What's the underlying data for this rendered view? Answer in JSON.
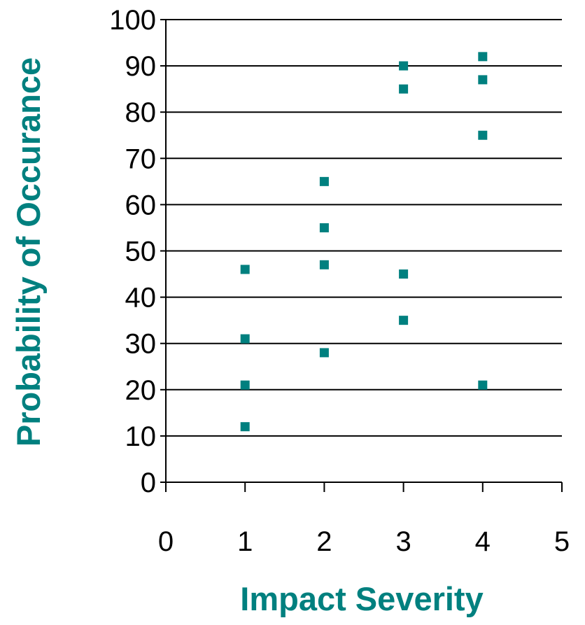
{
  "colors": {
    "accent": "#00807f",
    "grid": "#000000",
    "axis": "#000000",
    "text": "#000000",
    "background": "#ffffff"
  },
  "chart_data": {
    "type": "scatter",
    "title": "",
    "xlabel": "Impact Severity",
    "ylabel": "Probability of Occurance",
    "xlim": [
      0,
      5
    ],
    "ylim": [
      0,
      100
    ],
    "x_ticks": [
      0,
      1,
      2,
      3,
      4,
      5
    ],
    "y_ticks": [
      0,
      10,
      20,
      30,
      40,
      50,
      60,
      70,
      80,
      90,
      100
    ],
    "grid": {
      "horizontal": true,
      "vertical": false
    },
    "legend": "none",
    "marker": "square",
    "series": [
      {
        "points": [
          {
            "x": 1,
            "y": 46
          },
          {
            "x": 1,
            "y": 31
          },
          {
            "x": 1,
            "y": 21
          },
          {
            "x": 1,
            "y": 12
          },
          {
            "x": 2,
            "y": 65
          },
          {
            "x": 2,
            "y": 55
          },
          {
            "x": 2,
            "y": 47
          },
          {
            "x": 2,
            "y": 28
          },
          {
            "x": 3,
            "y": 90
          },
          {
            "x": 3,
            "y": 85
          },
          {
            "x": 3,
            "y": 45
          },
          {
            "x": 3,
            "y": 35
          },
          {
            "x": 4,
            "y": 92
          },
          {
            "x": 4,
            "y": 87
          },
          {
            "x": 4,
            "y": 75
          },
          {
            "x": 4,
            "y": 21
          }
        ]
      }
    ]
  }
}
